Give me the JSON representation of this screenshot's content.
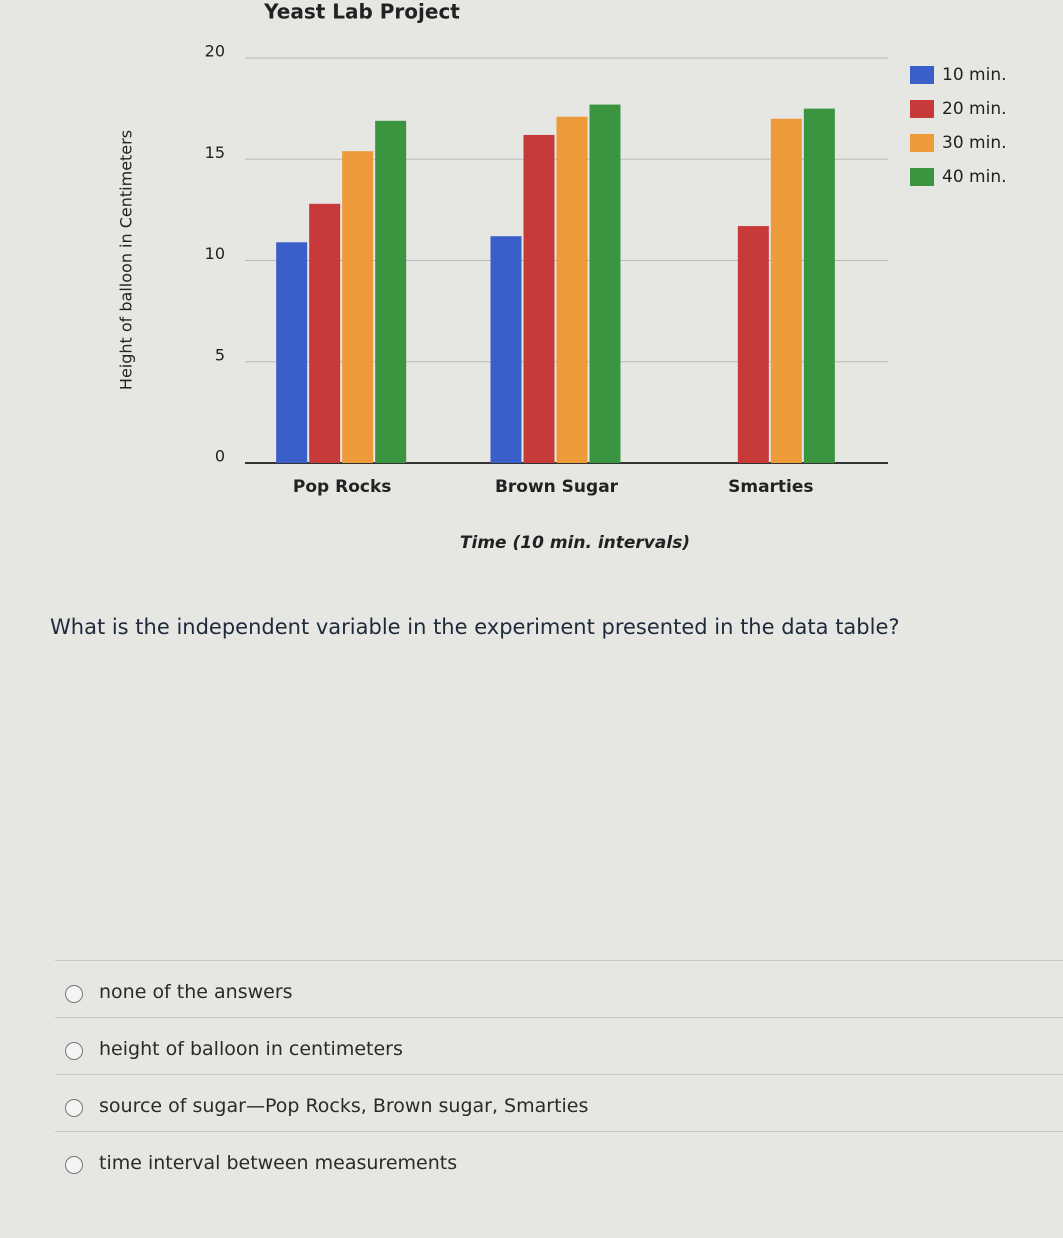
{
  "chart_data": {
    "type": "bar",
    "title": "Yeast Lab Project",
    "x_label": "Time (10 min. intervals)",
    "y_label": "Height of balloon in Centimeters",
    "categories": [
      "Pop Rocks",
      "Brown Sugar",
      "Smarties"
    ],
    "series": [
      {
        "name": "10 min.",
        "color": "#3a5fc8",
        "values": [
          10.9,
          11.2,
          null
        ]
      },
      {
        "name": "20 min.",
        "color": "#c83a3a",
        "values": [
          12.8,
          16.2,
          11.7
        ]
      },
      {
        "name": "30 min.",
        "color": "#ec9a3a",
        "values": [
          15.4,
          17.1,
          17.0
        ]
      },
      {
        "name": "40 min.",
        "color": "#3a9440",
        "values": [
          16.9,
          17.7,
          17.5
        ]
      }
    ],
    "ylim": [
      0,
      20
    ],
    "yticks": [
      0,
      5,
      10,
      15,
      20
    ],
    "grid": true,
    "legend": "right"
  },
  "question": "What is the independent variable in the experiment presented in the data table?",
  "options": [
    "none of the answers",
    "height of balloon in centimeters",
    "source of sugar—Pop Rocks, Brown sugar, Smarties",
    "time interval between measurements"
  ]
}
